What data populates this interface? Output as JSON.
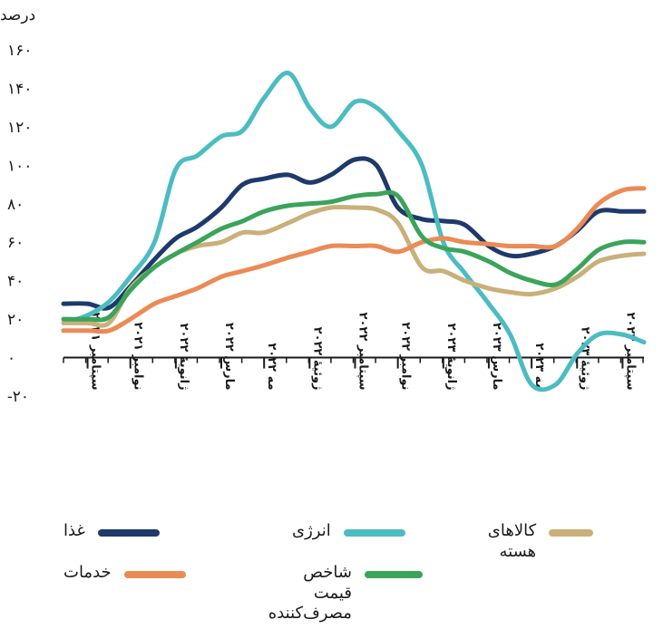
{
  "chart_data": {
    "type": "line",
    "ylabel": "درصد",
    "ylim": [
      -20,
      160
    ],
    "yticks": [
      "-۲۰",
      "۰",
      "۲۰",
      "۴۰",
      "۶۰",
      "۸۰",
      "۱۰۰",
      "۱۲۰",
      "۱۴۰",
      "۱۶۰"
    ],
    "ytick_values": [
      -20,
      0,
      20,
      40,
      60,
      80,
      100,
      120,
      140,
      160
    ],
    "x_range": [
      2021.58,
      2023.75
    ],
    "xticks": [
      {
        "x": 2021.67,
        "label": "سپتامبر ۲۰۲۱"
      },
      {
        "x": 2021.83,
        "label": "نوامبر ۲۰۲۱"
      },
      {
        "x": 2022.0,
        "label": "ژانویهٔ ۲۰۲۲"
      },
      {
        "x": 2022.17,
        "label": "مارس ۲۰۲۲"
      },
      {
        "x": 2022.33,
        "label": "مه ۲۰۲۲"
      },
      {
        "x": 2022.5,
        "label": "ژوئیهٔ ۲۰۲۲"
      },
      {
        "x": 2022.67,
        "label": "سپتامبر ۲۰۲۲"
      },
      {
        "x": 2022.83,
        "label": "نوامبر ۲۰۲۲"
      },
      {
        "x": 2023.0,
        "label": "ژانویهٔ ۲۰۲۳"
      },
      {
        "x": 2023.17,
        "label": "مارس ۲۰۲۳"
      },
      {
        "x": 2023.33,
        "label": "مه ۲۰۲۳"
      },
      {
        "x": 2023.5,
        "label": "ژوئیهٔ ۲۰۲۳"
      },
      {
        "x": 2023.67,
        "label": "سپتامبر ۲۰۲۳"
      }
    ],
    "x": [
      2021.58,
      2021.67,
      2021.75,
      2021.83,
      2021.92,
      2022.0,
      2022.08,
      2022.17,
      2022.25,
      2022.33,
      2022.42,
      2022.5,
      2022.58,
      2022.67,
      2022.75,
      2022.83,
      2022.92,
      2023.0,
      2023.08,
      2023.17,
      2023.25,
      2023.33,
      2023.42,
      2023.5,
      2023.58,
      2023.67,
      2023.75
    ],
    "series": [
      {
        "name": "غذا",
        "color": "#1e3a6b",
        "values": [
          28,
          28,
          26,
          37,
          51,
          62,
          68,
          78,
          90,
          93,
          95,
          91,
          95,
          103,
          100,
          78,
          72,
          71,
          69,
          58,
          53,
          54,
          58,
          66,
          76,
          76,
          76
        ]
      },
      {
        "name": "انرژی",
        "color": "#4bbcc2",
        "values": [
          18,
          22,
          29,
          42,
          60,
          98,
          105,
          115,
          118,
          135,
          148,
          130,
          120,
          133,
          130,
          118,
          100,
          60,
          44,
          28,
          12,
          -14,
          -14,
          2,
          12,
          12,
          8
        ]
      },
      {
        "name": "کالاهای هسته",
        "color": "#c9b07a",
        "values": [
          18,
          18,
          18,
          36,
          47,
          54,
          58,
          60,
          65,
          65,
          70,
          75,
          78,
          78,
          77,
          70,
          47,
          45,
          40,
          36,
          34,
          33,
          36,
          42,
          50,
          53,
          54
        ]
      },
      {
        "name": "خدمات",
        "color": "#ec8a56",
        "values": [
          14,
          14,
          14,
          20,
          28,
          32,
          36,
          42,
          45,
          48,
          52,
          55,
          58,
          58,
          58,
          55,
          60,
          62,
          60,
          59,
          58,
          58,
          58,
          67,
          80,
          87,
          88
        ]
      },
      {
        "name": "شاخص قیمت مصرف‌کننده",
        "color": "#3aa45a",
        "values": [
          20,
          20,
          21,
          35,
          47,
          54,
          60,
          67,
          71,
          76,
          79,
          80,
          81,
          84,
          85,
          84,
          63,
          57,
          55,
          50,
          44,
          40,
          38,
          46,
          56,
          60,
          60
        ]
      }
    ]
  },
  "legend": [
    {
      "label": "غذا",
      "color": "#1e3a6b"
    },
    {
      "label": "انرژی",
      "color": "#4bbcc2"
    },
    {
      "label": "کالاهای هسته",
      "color": "#c9b07a"
    },
    {
      "label": "خدمات",
      "color": "#ec8a56"
    },
    {
      "label": "شاخص قیمت\nمصرف‌کننده",
      "color": "#3aa45a"
    }
  ]
}
